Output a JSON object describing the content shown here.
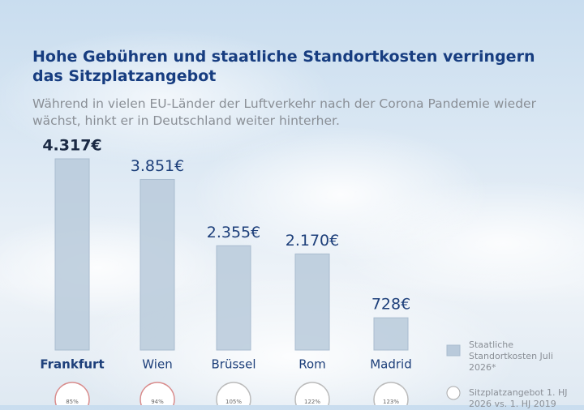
{
  "chart_data": {
    "type": "bar",
    "title": "Hohe Gebühren und staatliche Standortkosten verringern das Sitzplatzangebot",
    "subtitle": "Während in vielen EU-Länder der Luftverkehr nach der Corona Pandemie wieder wächst, hinkt er in Deutschland weiter hinterher.",
    "categories": [
      "Frankfurt",
      "Wien",
      "Brüssel",
      "Rom",
      "Madrid"
    ],
    "highlight_index": 0,
    "series": [
      {
        "name": "Staatliche Standortkosten Juli 2026*",
        "color": "#b9cadb",
        "values": [
          4317,
          3851,
          2355,
          2170,
          728
        ],
        "value_labels": [
          "4.317€",
          "3.851€",
          "2.355€",
          "2.170€",
          "728€"
        ]
      },
      {
        "name": "Sitzplatzangebot 1. HJ 2026 vs. 1. HJ 2019",
        "color": "#ffffff",
        "values": [
          85,
          94,
          105,
          122,
          123
        ],
        "value_labels": [
          "85%",
          "94%",
          "105%",
          "122%",
          "123%"
        ]
      }
    ]
  }
}
